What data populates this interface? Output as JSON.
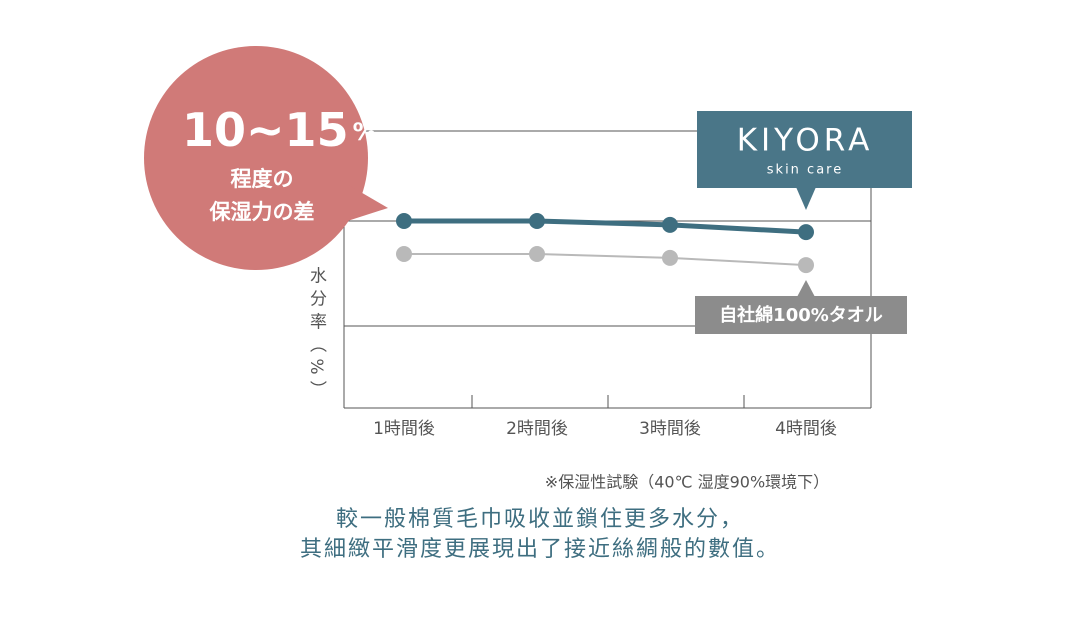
{
  "chart_data": {
    "type": "line",
    "categories": [
      "1時間後",
      "2時間後",
      "3時間後",
      "4時間後"
    ],
    "series": [
      {
        "name": "KIYORA",
        "color": "#3e6e80",
        "values": [
          67.5,
          67.5,
          66.1,
          63.5
        ]
      },
      {
        "name": "自社綿100%タオル",
        "color": "#b9b9b9",
        "values": [
          55.6,
          55.6,
          54.2,
          51.6
        ]
      }
    ],
    "ylim": [
      0,
      100
    ],
    "y_label": "水分率（%）",
    "brand_sub": "skin care",
    "callout": {
      "value": "10~15",
      "unit": "%",
      "line1": "程度の",
      "line2": "保湿力の差"
    },
    "note": "※保湿性試験（40℃ 湿度90%環境下）",
    "caption": [
      "較一般棉質毛巾吸收並鎖住更多水分，",
      "其細緻平滑度更展現出了接近絲綢般的數值。"
    ]
  }
}
